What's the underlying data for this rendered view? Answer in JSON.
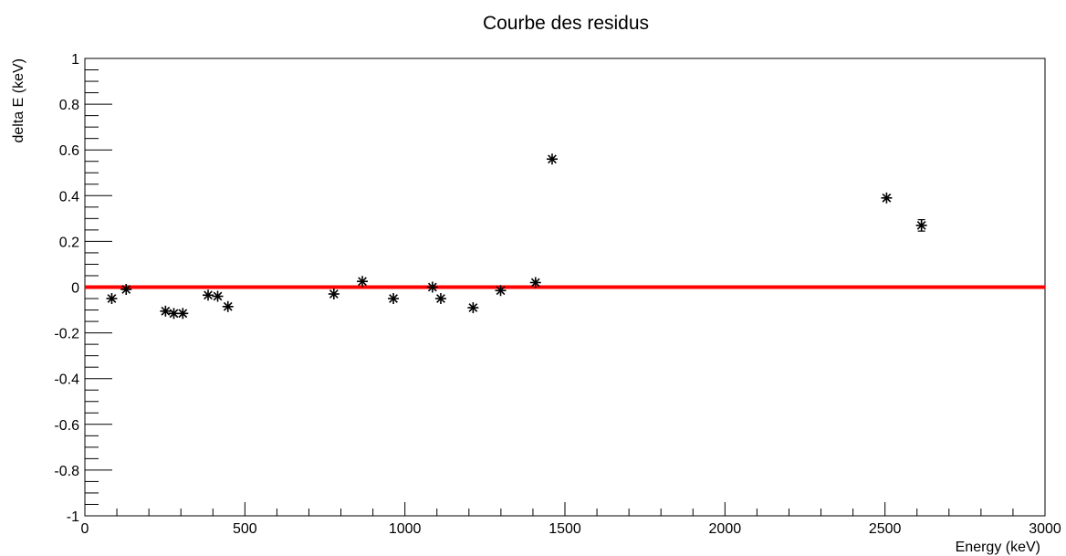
{
  "chart_data": {
    "type": "scatter",
    "title": "Courbe des residus",
    "xlabel": "Energy (keV)",
    "ylabel": "delta E (keV)",
    "xlim": [
      0,
      3000
    ],
    "ylim": [
      -1,
      1
    ],
    "x_ticks": [
      0,
      500,
      1000,
      1500,
      2000,
      2500,
      3000
    ],
    "x_tick_labels": [
      "0",
      "500",
      "1000",
      "1500",
      "2000",
      "2500",
      "3000"
    ],
    "y_ticks": [
      -1,
      -0.8,
      -0.6,
      -0.4,
      -0.2,
      0,
      0.2,
      0.4,
      0.6,
      0.8,
      1
    ],
    "y_tick_labels": [
      "-1",
      "-0.8",
      "-0.6",
      "-0.4",
      "-0.2",
      "0",
      "0.2",
      "0.4",
      "0.6",
      "0.8",
      "1"
    ],
    "grid": false,
    "marker": "asterisk",
    "marker_color": "#000000",
    "reference_line": {
      "y": 0,
      "color": "#ff0000"
    },
    "series": [
      {
        "points": [
          {
            "x": 84,
            "y": -0.05
          },
          {
            "x": 129,
            "y": -0.01
          },
          {
            "x": 252,
            "y": -0.105
          },
          {
            "x": 278,
            "y": -0.115
          },
          {
            "x": 306,
            "y": -0.115
          },
          {
            "x": 385,
            "y": -0.035
          },
          {
            "x": 415,
            "y": -0.04
          },
          {
            "x": 447,
            "y": -0.085
          },
          {
            "x": 778,
            "y": -0.03
          },
          {
            "x": 867,
            "y": 0.025
          },
          {
            "x": 964,
            "y": -0.05
          },
          {
            "x": 1086,
            "y": 0.0
          },
          {
            "x": 1112,
            "y": -0.05
          },
          {
            "x": 1213,
            "y": -0.09
          },
          {
            "x": 1299,
            "y": -0.015
          },
          {
            "x": 1408,
            "y": 0.02
          },
          {
            "x": 1460,
            "y": 0.56
          },
          {
            "x": 2505,
            "y": 0.39
          },
          {
            "x": 2614,
            "y": 0.27,
            "err": 0.025
          }
        ]
      }
    ]
  }
}
